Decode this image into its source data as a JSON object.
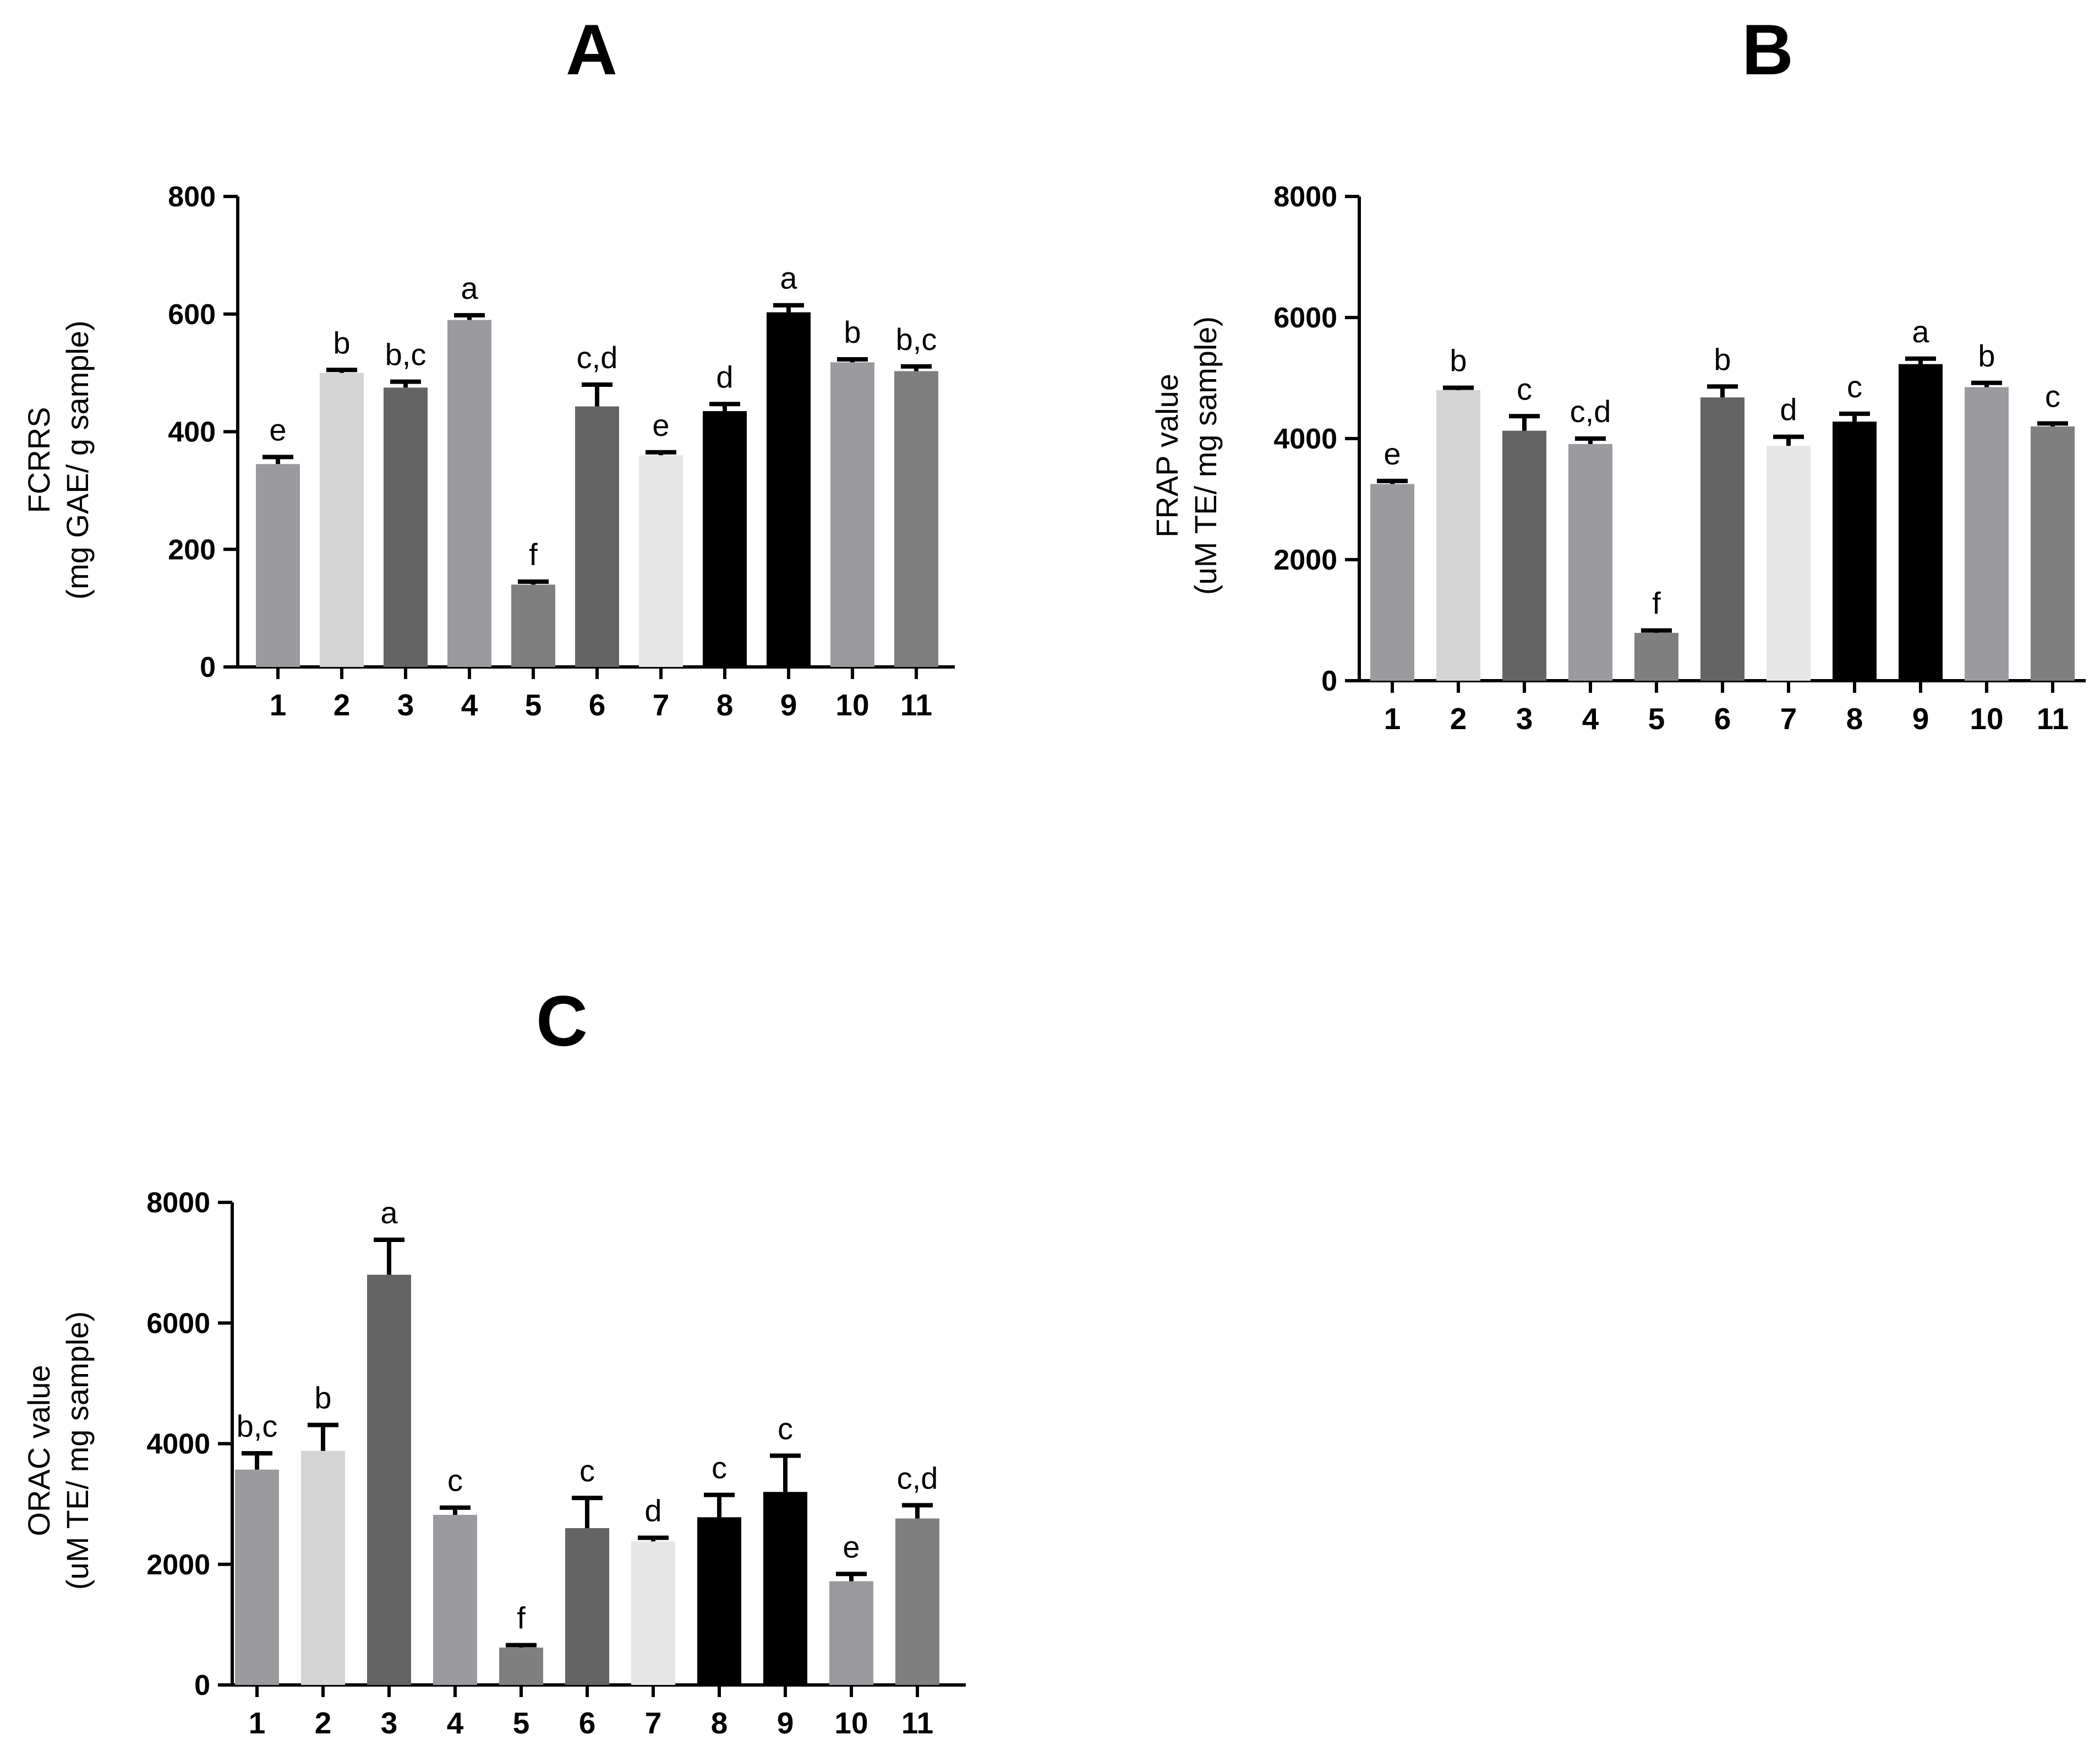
{
  "colors": {
    "ink": "#000000",
    "background": "#ffffff",
    "bar_palette": [
      "#9b9b9f",
      "#d4d4d4",
      "#646464",
      "#9b9b9f",
      "#7f7f7f",
      "#646464",
      "#e6e6e6",
      "#000000",
      "#000000",
      "#9b9b9f",
      "#7f7f7f"
    ]
  },
  "chart_data": [
    {
      "type": "bar",
      "panel": "A",
      "title": "A",
      "xlabel": "",
      "ylabel": [
        "FCRRS",
        "(mg GAE/ g sample)"
      ],
      "categories": [
        "1",
        "2",
        "3",
        "4",
        "5",
        "6",
        "7",
        "8",
        "9",
        "10",
        "11"
      ],
      "values": [
        345,
        500,
        475,
        590,
        140,
        443,
        360,
        435,
        603,
        518,
        503
      ],
      "errors": [
        12,
        5,
        10,
        8,
        5,
        37,
        5,
        12,
        12,
        5,
        8
      ],
      "labels": [
        "e",
        "b",
        "b,c",
        "a",
        "f",
        "c,d",
        "e",
        "d",
        "a",
        "b",
        "b,c"
      ],
      "ylim": [
        0,
        800
      ],
      "yticks": [
        "0",
        "200",
        "400",
        "600",
        "800"
      ],
      "grid": false,
      "legend": "none"
    },
    {
      "type": "bar",
      "panel": "B",
      "title": "B",
      "xlabel": "",
      "ylabel": [
        "FRAP value",
        "(uM TE/ mg sample)"
      ],
      "categories": [
        "1",
        "2",
        "3",
        "4",
        "5",
        "6",
        "7",
        "8",
        "9",
        "10",
        "11"
      ],
      "values": [
        3250,
        4800,
        4130,
        3910,
        790,
        4680,
        3880,
        4280,
        5230,
        4850,
        4200
      ],
      "errors": [
        50,
        40,
        240,
        90,
        40,
        180,
        150,
        130,
        90,
        70,
        50
      ],
      "labels": [
        "e",
        "b",
        "c",
        "c,d",
        "f",
        "b",
        "d",
        "c",
        "a",
        "b",
        "c"
      ],
      "ylim": [
        0,
        8000
      ],
      "yticks": [
        "0",
        "2000",
        "4000",
        "6000",
        "8000"
      ],
      "grid": false,
      "legend": "none"
    },
    {
      "type": "bar",
      "panel": "C",
      "title": "C",
      "xlabel": "",
      "ylabel": [
        "ORAC value",
        "(uM TE/ mg sample)"
      ],
      "categories": [
        "1",
        "2",
        "3",
        "4",
        "5",
        "6",
        "7",
        "8",
        "9",
        "10",
        "11"
      ],
      "values": [
        3570,
        3880,
        6800,
        2820,
        620,
        2600,
        2380,
        2780,
        3200,
        1720,
        2760
      ],
      "errors": [
        270,
        430,
        580,
        120,
        40,
        500,
        60,
        370,
        600,
        120,
        220
      ],
      "labels": [
        "b,c",
        "b",
        "a",
        "c",
        "f",
        "c",
        "d",
        "c",
        "c",
        "e",
        "c,d"
      ],
      "ylim": [
        0,
        8000
      ],
      "yticks": [
        "0",
        "2000",
        "4000",
        "6000",
        "8000"
      ],
      "grid": false,
      "legend": "none"
    }
  ]
}
